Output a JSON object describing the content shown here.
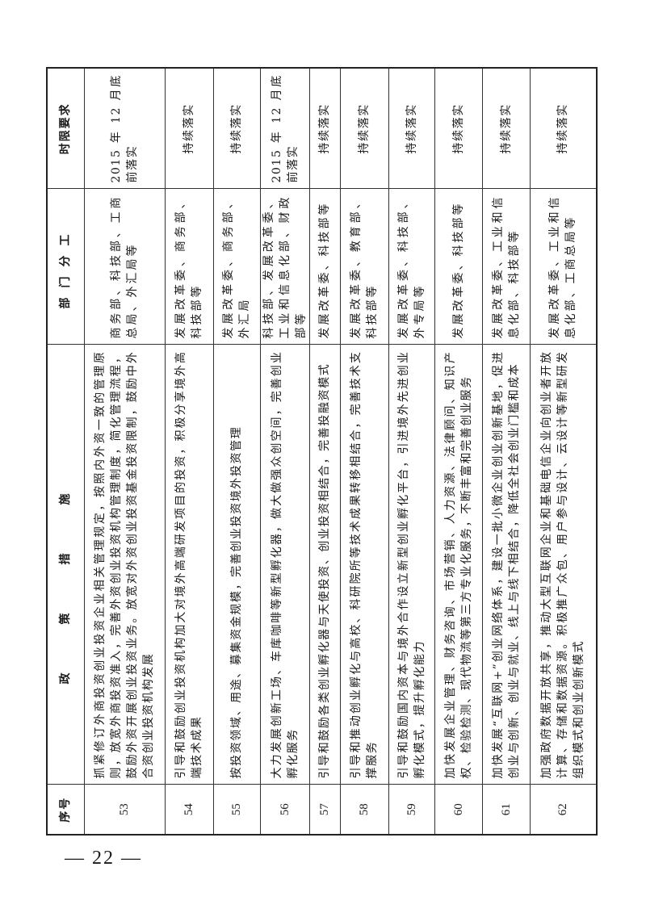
{
  "table": {
    "headers": {
      "no": "序号",
      "policy": "政策措施",
      "dept": "部门分工",
      "time": "时限要求"
    },
    "rows": [
      {
        "no": "53",
        "policy": "抓紧修订外商投资创业投资企业相关管理规定，按照内外资一致的管理原则，放宽外商投资准入，完善外资创业投资机构管理制度，简化管理流程，鼓励外资开展创业投资业务。放宽对外资创业投资基金投资限制，鼓励中外合资创业投资机构发展",
        "dept": "商务部、科技部、工商总局、外汇局等",
        "time": "2015 年 12 月底前落实"
      },
      {
        "no": "54",
        "policy": "引导和鼓励创业投资机构加大对境外高端研发项目的投资，积极分享境外高端技术成果",
        "dept": "发展改革委、商务部、科技部等",
        "time": "持续落实"
      },
      {
        "no": "55",
        "policy": "按投资领域、用途、募集资金规模，完善创业投资境外投资管理",
        "dept": "发展改革委、商务部、外汇局",
        "time": "持续落实"
      },
      {
        "no": "56",
        "policy": "大力发展创新工场、车库咖啡等新型孵化器，做大做强众创空间，完善创业孵化服务",
        "dept": "科技部、发展改革委、工业和信息化部、财政部等",
        "time": "2015 年 12 月底前落实"
      },
      {
        "no": "57",
        "policy": "引导和鼓励各类创业孵化器与天使投资、创业投资相结合，完善投融资模式",
        "dept": "发展改革委、科技部等",
        "time": "持续落实"
      },
      {
        "no": "58",
        "policy": "引导和推动创业孵化与高校、科研院所等技术成果转移相结合，完善技术支撑服务",
        "dept": "发展改革委、教育部、科技部等",
        "time": "持续落实"
      },
      {
        "no": "59",
        "policy": "引导和鼓励国内资本与境外合作设立新型创业孵化平台，引进境外先进创业孵化模式，提升孵化能力",
        "dept": "发展改革委、科技部、外专局等",
        "time": "持续落实"
      },
      {
        "no": "60",
        "policy": "加快发展企业管理、财务咨询、市场营销、人力资源、法律顾问、知识产权、检验检测、现代物流等第三方专业化服务，不断丰富和完善创业服务",
        "dept": "发展改革委、科技部等",
        "time": "持续落实"
      },
      {
        "no": "61",
        "policy": "加快发展“互联网+”创业网络体系，建设一批小微企业创业创新基地，促进创业与创新、创业与就业、线上与线下相结合，降低全社会创业门槛和成本",
        "dept": "发展改革委、工业和信息化部、科技部等",
        "time": "持续落实"
      },
      {
        "no": "62",
        "policy": "加强政府数据开放共享，推动大型互联网企业和基础电信企业向创业者开放计算、存储和数据资源。积极推广众包、用户参与设计、云设计等新型研发组织模式和创业创新模式",
        "dept": "发展改革委、工业和信息化部、工商总局等",
        "time": "持续落实"
      }
    ]
  },
  "footer": {
    "page_number": "— 22 —"
  }
}
